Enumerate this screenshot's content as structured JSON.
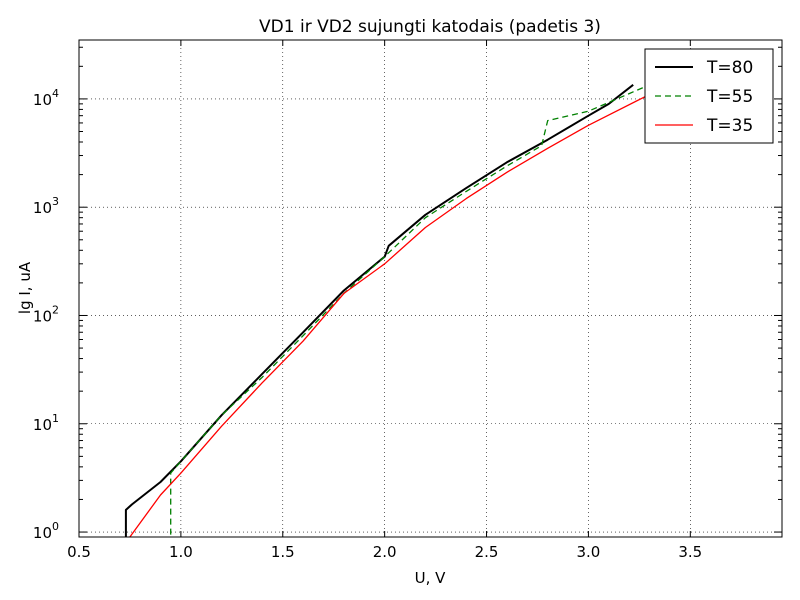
{
  "chart_data": {
    "type": "line",
    "title": "VD1 ir VD2 sujungti katodais (padetis 3)",
    "xlabel": "U, V",
    "ylabel": "lg I, uA",
    "xlim": [
      0.5,
      3.95
    ],
    "ylim": [
      0.9,
      35000
    ],
    "yscale": "log",
    "grid": true,
    "legend_position": "top-right",
    "x_ticks": [
      "0.5",
      "1.0",
      "1.5",
      "2.0",
      "2.5",
      "3.0",
      "3.5"
    ],
    "y_ticks": [
      {
        "base": "10",
        "exp": "0"
      },
      {
        "base": "10",
        "exp": "1"
      },
      {
        "base": "10",
        "exp": "2"
      },
      {
        "base": "10",
        "exp": "3"
      },
      {
        "base": "10",
        "exp": "4"
      }
    ],
    "series": [
      {
        "name": "T=80",
        "color": "#000000",
        "style": "solid",
        "points": [
          [
            0.73,
            0.5
          ],
          [
            0.73,
            1.6
          ],
          [
            0.76,
            1.8
          ],
          [
            0.9,
            2.9
          ],
          [
            1.0,
            4.5
          ],
          [
            1.2,
            12
          ],
          [
            1.4,
            29
          ],
          [
            1.6,
            70
          ],
          [
            1.8,
            170
          ],
          [
            2.0,
            350
          ],
          [
            2.02,
            440
          ],
          [
            2.2,
            850
          ],
          [
            2.4,
            1500
          ],
          [
            2.6,
            2600
          ],
          [
            2.8,
            4200
          ],
          [
            3.0,
            7000
          ],
          [
            3.1,
            9000
          ],
          [
            3.22,
            13500
          ]
        ]
      },
      {
        "name": "T=55",
        "color": "#008000",
        "style": "dashed",
        "points": [
          [
            0.95,
            0.5
          ],
          [
            0.95,
            3.5
          ],
          [
            1.0,
            4.5
          ],
          [
            1.2,
            12
          ],
          [
            1.4,
            27
          ],
          [
            1.6,
            65
          ],
          [
            1.8,
            160
          ],
          [
            2.0,
            350
          ],
          [
            2.2,
            800
          ],
          [
            2.4,
            1400
          ],
          [
            2.6,
            2400
          ],
          [
            2.77,
            3700
          ],
          [
            2.8,
            6300
          ],
          [
            3.0,
            7700
          ],
          [
            3.3,
            13500
          ]
        ]
      },
      {
        "name": "T=35",
        "color": "#ff0000",
        "style": "solid",
        "points": [
          [
            0.72,
            0.5
          ],
          [
            0.74,
            0.85
          ],
          [
            0.9,
            2.2
          ],
          [
            1.0,
            3.5
          ],
          [
            1.2,
            9.5
          ],
          [
            1.4,
            24
          ],
          [
            1.6,
            58
          ],
          [
            1.8,
            160
          ],
          [
            2.0,
            300
          ],
          [
            2.2,
            650
          ],
          [
            2.4,
            1200
          ],
          [
            2.6,
            2100
          ],
          [
            2.8,
            3500
          ],
          [
            3.0,
            5700
          ],
          [
            3.3,
            11000
          ]
        ]
      }
    ]
  }
}
